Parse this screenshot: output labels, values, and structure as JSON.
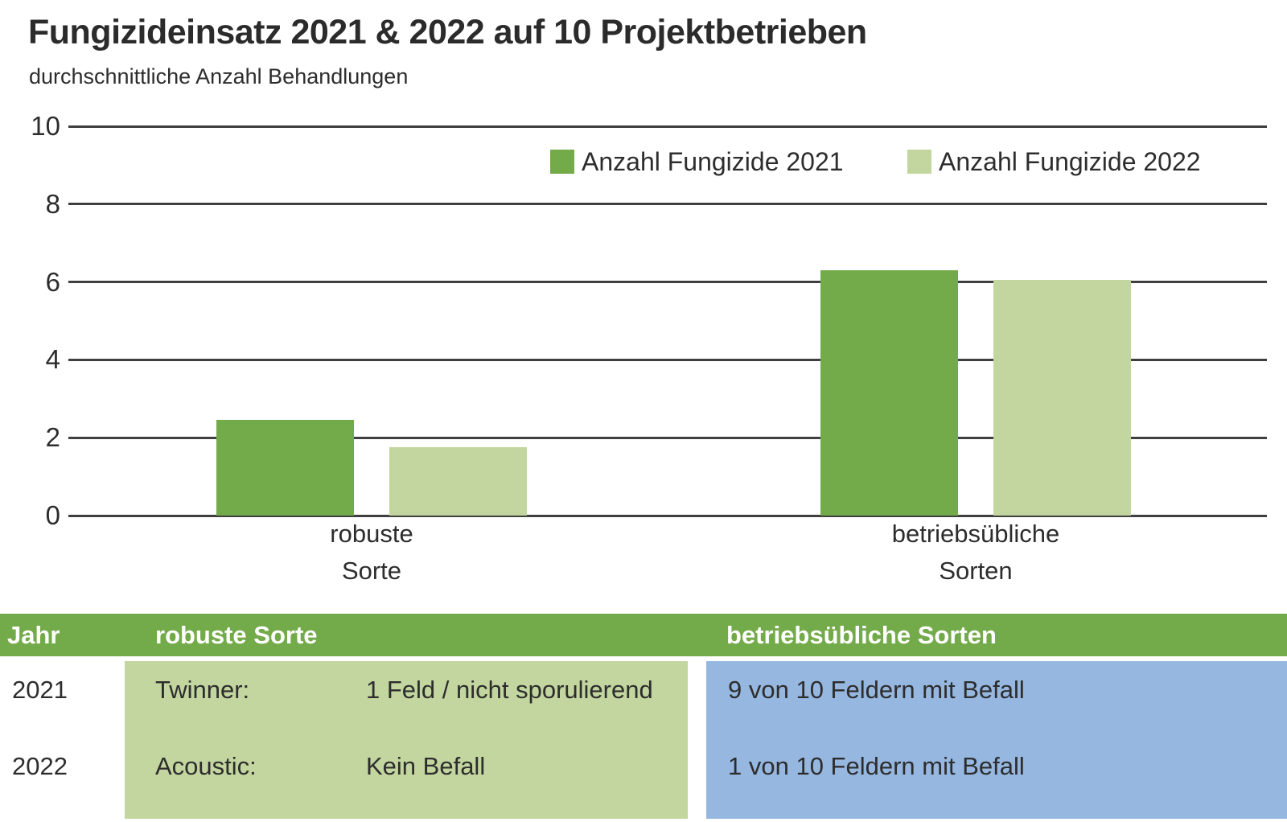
{
  "title": "Fungizideinsatz 2021 & 2022 auf 10 Projektbetrieben",
  "subtitle": "durchschnittliche Anzahl Behandlungen",
  "colors": {
    "green_2021": "#74ab4a",
    "green_2022": "#c3d69f",
    "table_header_green": "#74ab4a",
    "table_body_green": "#c3d69f",
    "table_body_blue": "#96b7e0",
    "grid": "#3f3f3f",
    "text": "#2d2d2d",
    "header_text": "#ffffff"
  },
  "chart_data": {
    "type": "bar",
    "categories": [
      [
        "robuste",
        "Sorte"
      ],
      [
        "betriebsübliche",
        "Sorten"
      ]
    ],
    "series": [
      {
        "name": "Anzahl Fungizide 2021",
        "color": "#74ab4a",
        "values": [
          2.45,
          6.3
        ]
      },
      {
        "name": "Anzahl Fungizide 2022",
        "color": "#c3d69f",
        "values": [
          1.75,
          6.05
        ]
      }
    ],
    "title": "Fungizideinsatz 2021 & 2022 auf 10 Projektbetrieben",
    "subtitle": "durchschnittliche Anzahl Behandlungen",
    "xlabel": "",
    "ylabel": "",
    "ylim": [
      0,
      10
    ],
    "yticks": [
      0,
      2,
      4,
      6,
      8,
      10
    ],
    "grid": true,
    "legend_position": "top-right"
  },
  "table": {
    "header": [
      "Jahr",
      "robuste Sorte",
      "betriebsübliche Sorten"
    ],
    "rows": [
      {
        "jahr": "2021",
        "sorte_name": "Twinner:",
        "sorte_result": "1 Feld / nicht sporulierend",
        "betriebsueblich": "9 von 10 Feldern mit Befall"
      },
      {
        "jahr": "2022",
        "sorte_name": "Acoustic:",
        "sorte_result": "Kein Befall",
        "betriebsueblich": "1 von 10 Feldern mit Befall"
      }
    ]
  }
}
